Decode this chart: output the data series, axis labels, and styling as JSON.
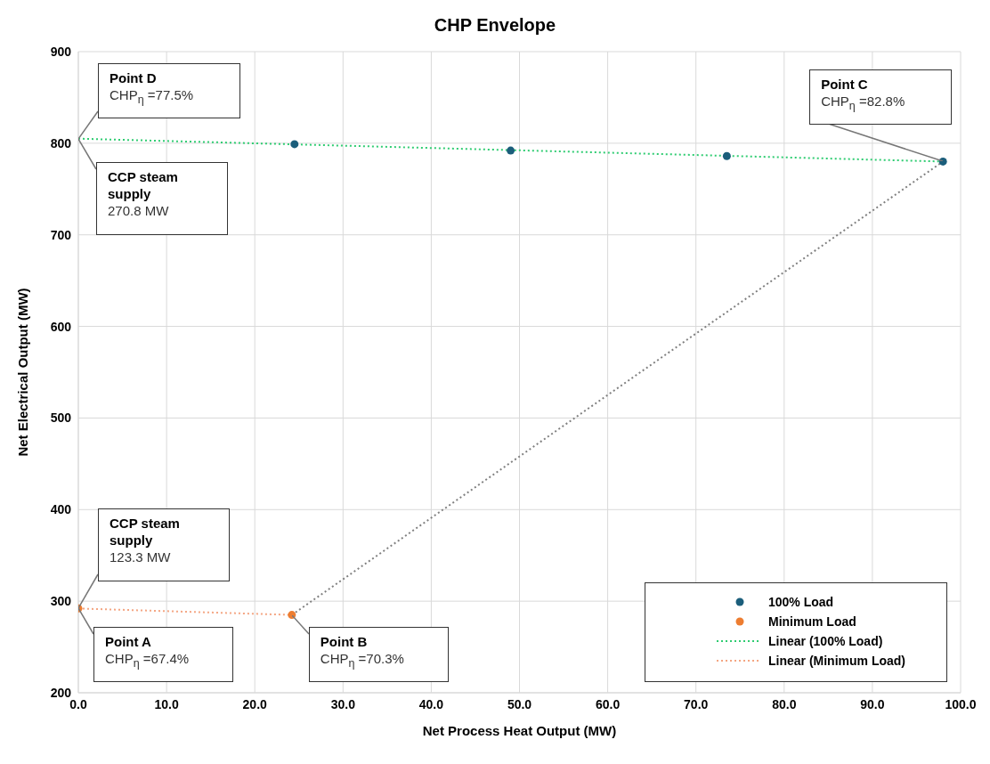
{
  "chart_data": {
    "type": "scatter",
    "title": "CHP Envelope",
    "xlabel": "Net Process Heat Output (MW)",
    "ylabel": "Net Electrical Output (MW)",
    "xlim": [
      0,
      100
    ],
    "ylim": [
      200,
      900
    ],
    "xticks": [
      {
        "value": 0,
        "label": "0.0"
      },
      {
        "value": 10,
        "label": "10.0"
      },
      {
        "value": 20,
        "label": "20.0"
      },
      {
        "value": 30,
        "label": "30.0"
      },
      {
        "value": 40,
        "label": "40.0"
      },
      {
        "value": 50,
        "label": "50.0"
      },
      {
        "value": 60,
        "label": "60.0"
      },
      {
        "value": 70,
        "label": "70.0"
      },
      {
        "value": 80,
        "label": "80.0"
      },
      {
        "value": 90,
        "label": "90.0"
      },
      {
        "value": 100,
        "label": "100.0"
      }
    ],
    "yticks": [
      200,
      300,
      400,
      500,
      600,
      700,
      800,
      900
    ],
    "grid": true,
    "legend": "bottom right",
    "series": [
      {
        "name": "100% Load",
        "marker": "circle",
        "color": "#1b5e7b",
        "x": [
          24.5,
          49,
          73.5,
          98
        ],
        "values": [
          799,
          792,
          786,
          780
        ]
      },
      {
        "name": "Minimum Load",
        "marker": "circle",
        "color": "#ed7d31",
        "x": [
          0,
          24.2
        ],
        "values": [
          292,
          285
        ]
      },
      {
        "name": "Linear (100% Load)",
        "type": "line",
        "line_style": "dotted",
        "color": "#2ecc71",
        "x": [
          0,
          98
        ],
        "values": [
          805,
          780
        ]
      },
      {
        "name": "Linear (Minimum Load)",
        "type": "line",
        "line_style": "dotted",
        "color": "#f4a582",
        "x": [
          0,
          24.2
        ],
        "values": [
          292,
          285
        ]
      },
      {
        "type": "line",
        "line_style": "dotted",
        "color": "#808080",
        "x": [
          24.2,
          98
        ],
        "values": [
          285,
          780
        ]
      }
    ],
    "annotations": [
      {
        "text": "Point D\nCHP$_{η}$ =77.5%",
        "x": 0,
        "y": 805
      },
      {
        "text": "CCP steam supply\n270.8 MW",
        "x": 0,
        "y": 805
      },
      {
        "text": "Point C\nCHP$_{η}$ =82.8%",
        "x": 98,
        "y": 780
      },
      {
        "text": "CCP steam supply\n123.3 MW",
        "x": 0,
        "y": 292
      },
      {
        "text": "Point A\nCHP$_{η}$ =67.4%",
        "x": 0,
        "y": 292
      },
      {
        "text": "Point B\nCHP$_{η}$ =70.3%",
        "x": 24.2,
        "y": 285
      }
    ]
  }
}
